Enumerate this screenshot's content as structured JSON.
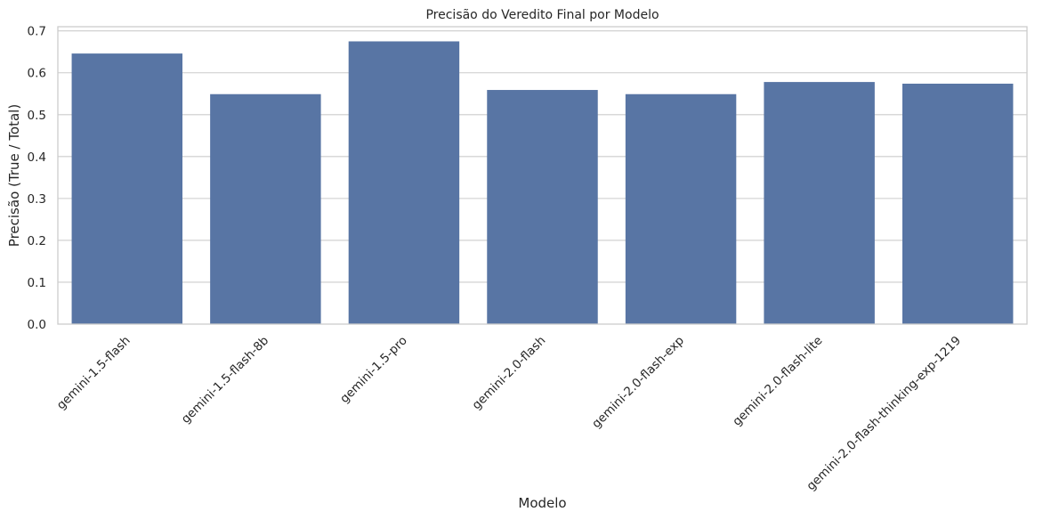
{
  "chart_data": {
    "type": "bar",
    "title": "Precisão do Veredito Final por Modelo",
    "xlabel": "Modelo",
    "ylabel": "Precisão (True / Total)",
    "categories": [
      "gemini-1.5-flash",
      "gemini-1.5-flash-8b",
      "gemini-1.5-pro",
      "gemini-2.0-flash",
      "gemini-2.0-flash-exp",
      "gemini-2.0-flash-lite",
      "gemini-2.0-flash-thinking-exp-1219"
    ],
    "values": [
      0.646,
      0.549,
      0.675,
      0.559,
      0.549,
      0.578,
      0.574
    ],
    "ylim": [
      0,
      0.71
    ],
    "yticks": [
      "0.0",
      "0.1",
      "0.2",
      "0.3",
      "0.4",
      "0.5",
      "0.6",
      "0.7"
    ],
    "grid": true,
    "grid_axis": "y",
    "bar_color": "#5875a4",
    "xtick_rotation": 45
  }
}
